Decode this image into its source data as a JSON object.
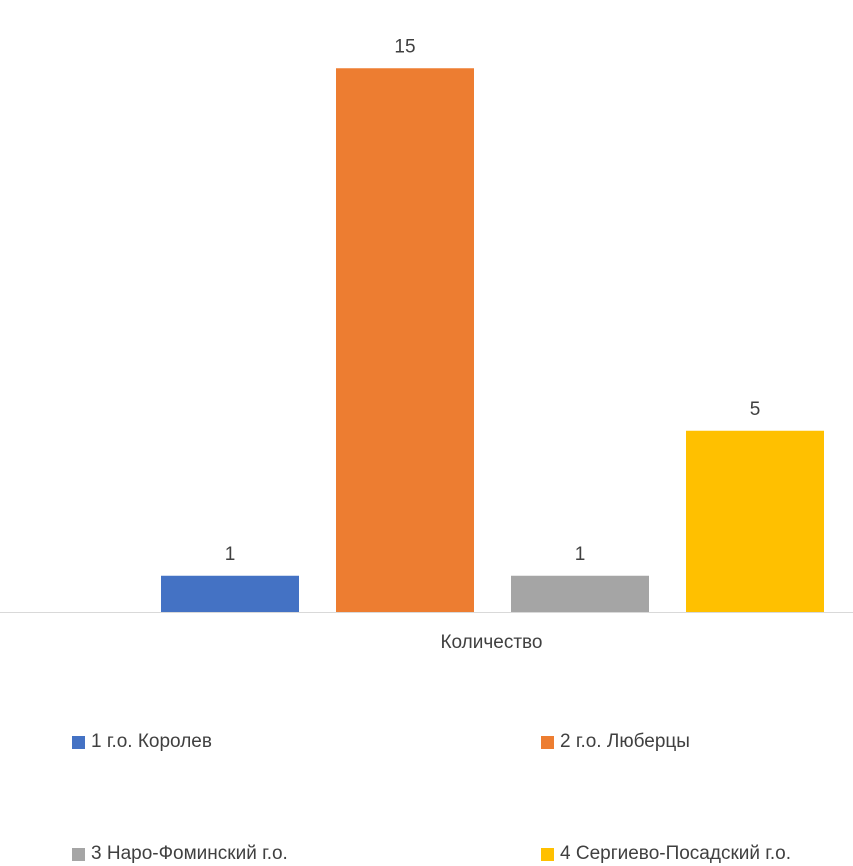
{
  "chart_data": {
    "type": "bar",
    "categories": [
      "Количество"
    ],
    "series": [
      {
        "name": "1 г.о. Королев",
        "values": [
          1
        ],
        "color": "#4472C4"
      },
      {
        "name": "2 г.о. Люберцы",
        "values": [
          15
        ],
        "color": "#ED7D31"
      },
      {
        "name": "3 Наро-Фоминский г.о.",
        "values": [
          1
        ],
        "color": "#A5A5A5"
      },
      {
        "name": "4 Сергиево-Посадский г.о.",
        "values": [
          5
        ],
        "color": "#FFC000"
      }
    ],
    "data_labels": [
      "1",
      "15",
      "1",
      "5"
    ],
    "title": "",
    "xlabel": "",
    "ylabel": "",
    "ylim": [
      0,
      16
    ],
    "grid": false,
    "legend_position": "bottom",
    "axis_color": "#D9D9D9"
  }
}
